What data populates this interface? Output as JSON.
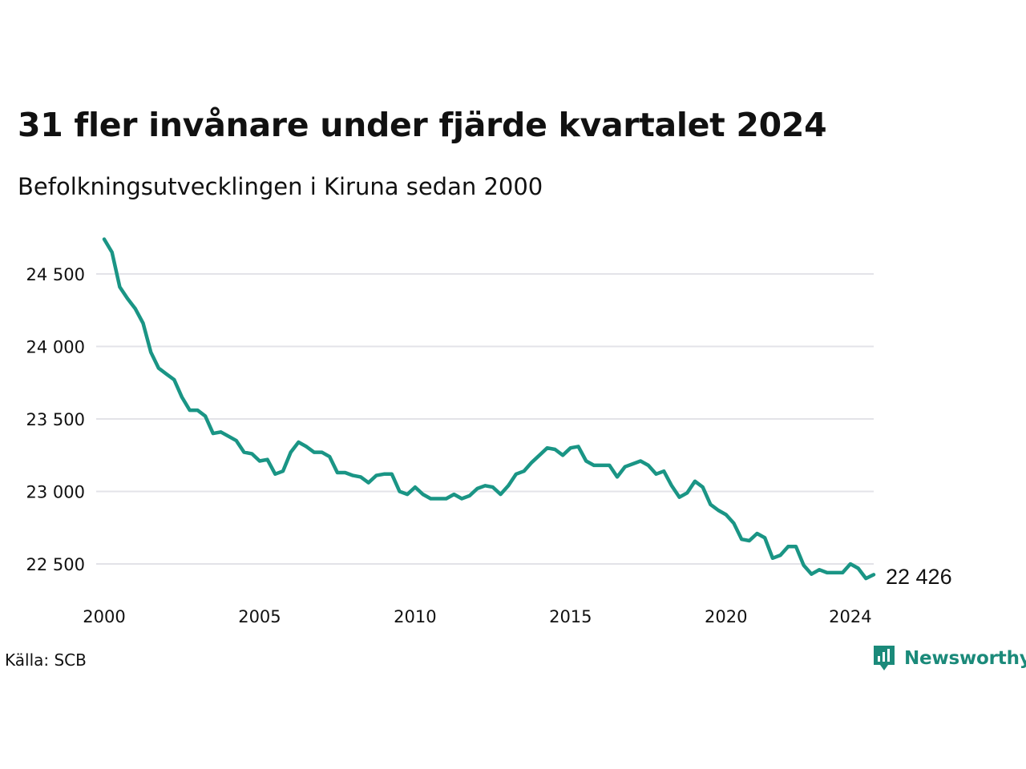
{
  "chart_data": {
    "type": "line",
    "title": "31 fler invånare under fjärde kvartalet 2024",
    "subtitle": "Befolkningsutvecklingen i Kiruna sedan 2000",
    "source": "Källa: SCB",
    "brand": "Newsworthy",
    "end_label": "22 426",
    "color": "#1a9585",
    "grid_color": "#e3e3e8",
    "grid": true,
    "x_range": [
      2000.0,
      2024.75
    ],
    "ylim": [
      22300,
      24760
    ],
    "y_ticks": [
      {
        "value": 22500,
        "label": "22 500"
      },
      {
        "value": 23000,
        "label": "23 000"
      },
      {
        "value": 23500,
        "label": "23 500"
      },
      {
        "value": 24000,
        "label": "24 000"
      },
      {
        "value": 24500,
        "label": "24 500"
      }
    ],
    "x_ticks": [
      {
        "value": 2000,
        "label": "2000"
      },
      {
        "value": 2005,
        "label": "2005"
      },
      {
        "value": 2010,
        "label": "2010"
      },
      {
        "value": 2015,
        "label": "2015"
      },
      {
        "value": 2020,
        "label": "2020"
      },
      {
        "value": 2024,
        "label": "2024"
      }
    ],
    "series": [
      {
        "start": "2000-Q1",
        "values": [
          24740,
          24650,
          24410,
          24330,
          24260,
          24160,
          23960,
          23850,
          23810,
          23770,
          23650,
          23560,
          23560,
          23520,
          23400,
          23410,
          23380,
          23350,
          23270,
          23260,
          23210,
          23220,
          23120,
          23140,
          23270,
          23340,
          23310,
          23270,
          23270,
          23240,
          23130,
          23130,
          23110,
          23100,
          23060,
          23110,
          23120,
          23120,
          23000,
          22980,
          23030,
          22980,
          22950,
          22950,
          22950,
          22980,
          22950,
          22970,
          23020,
          23040,
          23030,
          22980,
          23040,
          23120,
          23140,
          23200,
          23250,
          23300,
          23290,
          23250,
          23300,
          23310,
          23210,
          23180,
          23180,
          23180,
          23100,
          23170,
          23190,
          23210,
          23180,
          23120,
          23140,
          23040,
          22960,
          22990,
          23070,
          23030,
          22910,
          22870,
          22840,
          22780,
          22670,
          22660,
          22710,
          22680,
          22540,
          22560,
          22620,
          22620,
          22490,
          22430,
          22460,
          22440,
          22440,
          22440,
          22500,
          22470,
          22400,
          22426
        ]
      }
    ]
  }
}
